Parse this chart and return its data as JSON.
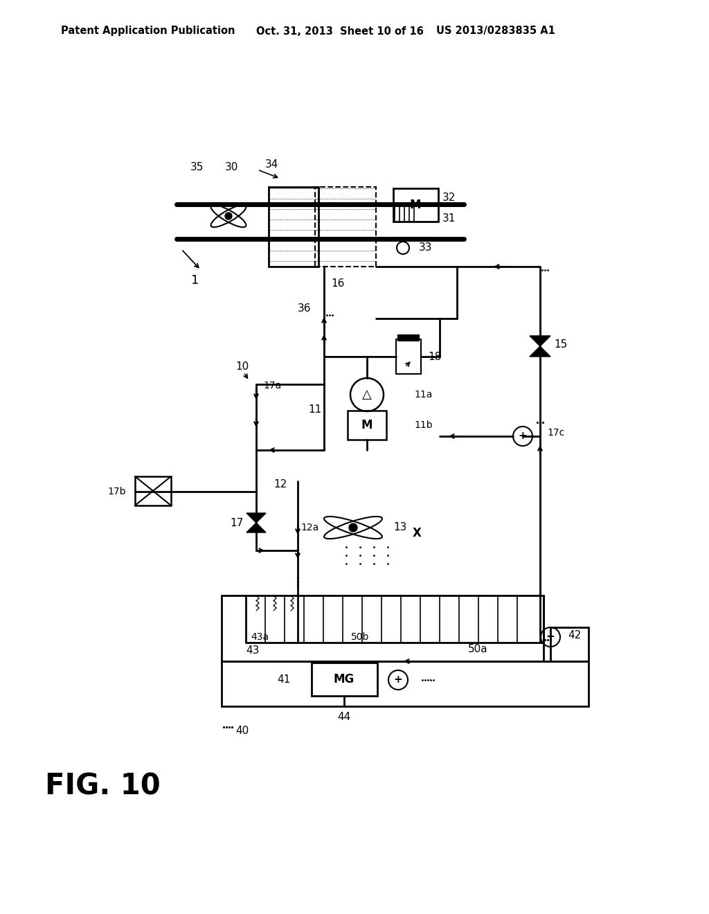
{
  "bg_color": "#ffffff",
  "line_color": "#000000",
  "header_left": "Patent Application Publication",
  "header_mid": "Oct. 31, 2013  Sheet 10 of 16",
  "header_right": "US 2013/0283835 A1",
  "fig_label": "FIG. 10"
}
